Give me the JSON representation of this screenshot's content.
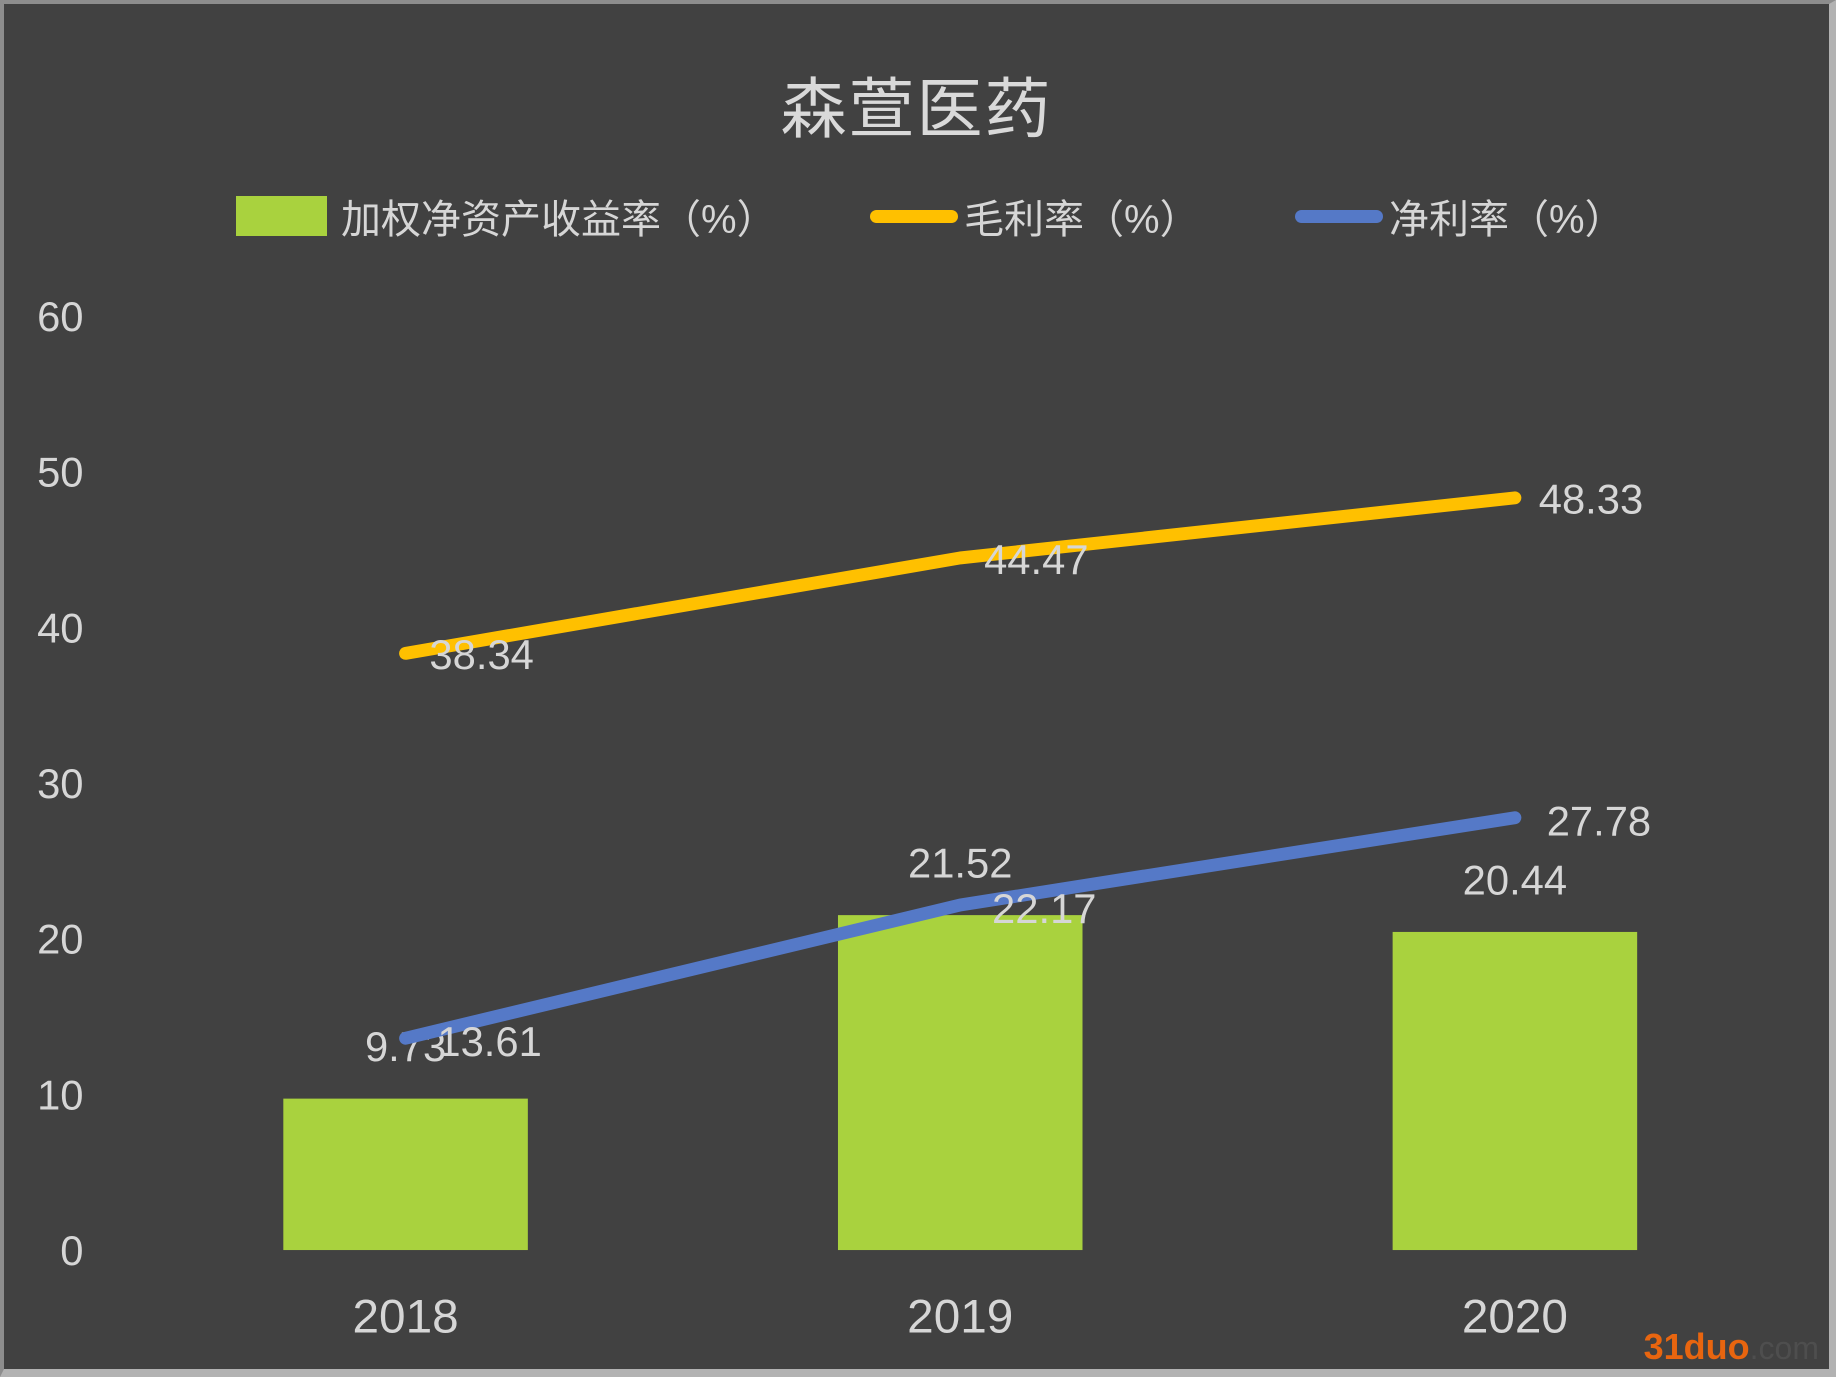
{
  "title": "森萱医药",
  "colors": {
    "background": "#414141",
    "frame_border": "#a6a6a6",
    "text": "#d6d6d6",
    "bar_green": "#a9d23e",
    "line_yellow": "#ffc000",
    "line_blue": "#5579c7",
    "watermark_brand": "#e8650f",
    "watermark_suffix": "#4e4e4e"
  },
  "watermark": {
    "brand": "31duo",
    "suffix": ".com"
  },
  "chart_data": {
    "type": "combo-bar-line",
    "title": "森萱医药",
    "categories": [
      "2018",
      "2019",
      "2020"
    ],
    "series": [
      {
        "name": "加权净资产收益率（%）",
        "type": "bar",
        "color": "#a9d23e",
        "values": [
          9.73,
          21.52,
          20.44
        ]
      },
      {
        "name": "毛利率（%）",
        "type": "line",
        "color": "#ffc000",
        "values": [
          38.34,
          44.47,
          48.33
        ]
      },
      {
        "name": "净利率（%）",
        "type": "line",
        "color": "#5579c7",
        "values": [
          13.61,
          22.17,
          27.78
        ]
      }
    ],
    "xlabel": "",
    "ylabel": "",
    "ylim": [
      0,
      60
    ],
    "yticks": [
      0,
      10,
      20,
      30,
      40,
      50,
      60
    ],
    "grid": false,
    "legend_position": "top",
    "data_labels": true
  }
}
